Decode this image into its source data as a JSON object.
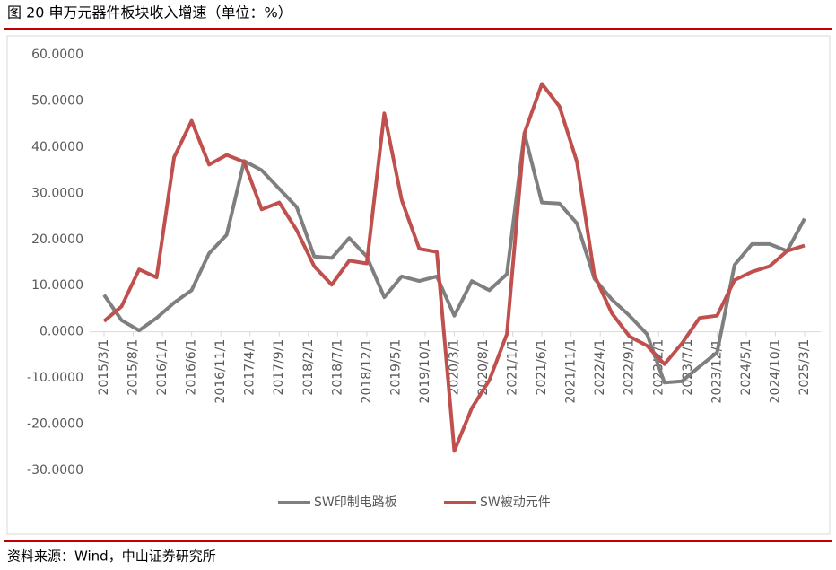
{
  "chart_data": {
    "type": "line",
    "title": "图 20 申万元器件板块收入增速（单位：%）",
    "source": "资料来源：Wind，中山证券研究所",
    "x": [
      "2015/3/1",
      "2015/6/1",
      "2015/9/1",
      "2015/12/1",
      "2016/3/1",
      "2016/6/1",
      "2016/9/1",
      "2016/12/1",
      "2017/3/1",
      "2017/6/1",
      "2017/9/1",
      "2017/12/1",
      "2018/3/1",
      "2018/6/1",
      "2018/9/1",
      "2018/12/1",
      "2019/3/1",
      "2019/6/1",
      "2019/9/1",
      "2019/12/1",
      "2020/3/1",
      "2020/6/1",
      "2020/9/1",
      "2020/12/1",
      "2021/3/1",
      "2021/6/1",
      "2021/9/1",
      "2021/12/1",
      "2022/3/1",
      "2022/6/1",
      "2022/9/1",
      "2022/12/1",
      "2023/3/1",
      "2023/6/1",
      "2023/9/1",
      "2023/12/1",
      "2024/3/1",
      "2024/6/1",
      "2024/9/1",
      "2024/12/1",
      "2025/3/1"
    ],
    "xticks": [
      "2015/3/1",
      "2015/8/1",
      "2016/1/1",
      "2016/6/1",
      "2016/11/1",
      "2017/4/1",
      "2017/9/1",
      "2018/2/1",
      "2018/7/1",
      "2018/12/1",
      "2019/5/1",
      "2019/10/1",
      "2020/3/1",
      "2020/8/1",
      "2021/1/1",
      "2021/6/1",
      "2021/11/1",
      "2022/4/1",
      "2022/9/1",
      "2023/2/1",
      "2023/7/1",
      "2023/12/1",
      "2024/5/1",
      "2024/10/1",
      "2025/3/1"
    ],
    "series": [
      {
        "name": "SW印制电路板",
        "color": "#7f7f7f",
        "values": [
          8,
          2.5,
          0.3,
          3,
          6.3,
          9,
          17,
          21,
          37,
          35,
          31,
          27,
          16.3,
          16,
          20.3,
          16.3,
          7.5,
          12,
          11,
          12,
          3.5,
          11,
          9,
          12.5,
          43,
          28,
          27.8,
          23.5,
          11.5,
          7,
          3.5,
          -0.5,
          -11,
          -10.7,
          -7.5,
          -4.5,
          14.5,
          19,
          19,
          17.5,
          24.5
        ]
      },
      {
        "name": "SW被动元件",
        "color": "#c0504d",
        "values": [
          2.3,
          5.5,
          13.5,
          11.8,
          37.8,
          45.7,
          36.2,
          38.3,
          36.8,
          26.5,
          28,
          22,
          14.2,
          10.2,
          15.4,
          14.8,
          47.3,
          28.5,
          18,
          17.3,
          -25.8,
          -16.5,
          -10.5,
          -0.5,
          43,
          53.7,
          48.8,
          36.8,
          12.2,
          4,
          -1,
          -3,
          -7,
          -2.5,
          3,
          3.5,
          11.2,
          13,
          14.2,
          17.5,
          18.7
        ]
      }
    ],
    "ylim": [
      -30,
      60
    ],
    "yticks": [
      {
        "value": -30,
        "label": "-30.0000"
      },
      {
        "value": -20,
        "label": "-20.0000"
      },
      {
        "value": -10,
        "label": "-10.0000"
      },
      {
        "value": 0,
        "label": "0.0000"
      },
      {
        "value": 10,
        "label": "10.0000"
      },
      {
        "value": 20,
        "label": "20.0000"
      },
      {
        "value": 30,
        "label": "30.0000"
      },
      {
        "value": 40,
        "label": "40.0000"
      },
      {
        "value": 50,
        "label": "50.0000"
      },
      {
        "value": 60,
        "label": "60.0000"
      }
    ],
    "grid": false,
    "legend": "bottom"
  }
}
